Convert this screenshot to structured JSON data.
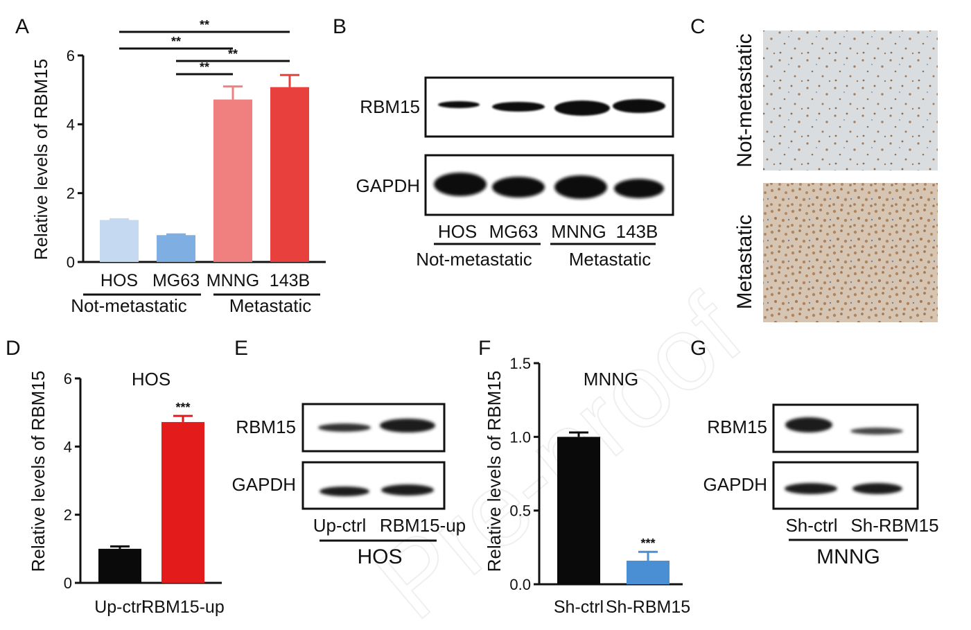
{
  "panels": {
    "A": "A",
    "B": "B",
    "C": "C",
    "D": "D",
    "E": "E",
    "F": "F",
    "G": "G"
  },
  "watermark": "Pre-proof",
  "chart_data": [
    {
      "id": "A",
      "type": "bar",
      "title": "",
      "ylabel": "Relative  levels of RBM15",
      "ylim": [
        0,
        6
      ],
      "yticks": [
        "0",
        "2",
        "4",
        "6"
      ],
      "categories": [
        "HOS",
        "MG63",
        "MNNG",
        "143B"
      ],
      "values": [
        1.22,
        0.78,
        4.72,
        5.08
      ],
      "errors": [
        0.02,
        0.02,
        0.38,
        0.35
      ],
      "colors": [
        "#c5daf1",
        "#7eaee2",
        "#f08080",
        "#e8403d"
      ],
      "groups": [
        "Not-metastatic",
        "Metastatic"
      ],
      "significance": [
        {
          "from": 0,
          "to": 3,
          "label": "**"
        },
        {
          "from": 0,
          "to": 2,
          "label": "**"
        },
        {
          "from": 1,
          "to": 3,
          "label": "**"
        },
        {
          "from": 1,
          "to": 2,
          "label": "**"
        }
      ]
    },
    {
      "id": "D",
      "type": "bar",
      "title": "HOS",
      "ylabel": "Relative  levels of RBM15",
      "ylim": [
        0,
        6
      ],
      "yticks": [
        "0",
        "2",
        "4",
        "6"
      ],
      "categories": [
        "Up-ctrl",
        "RBM15-up"
      ],
      "values": [
        1.0,
        4.72
      ],
      "errors": [
        0.07,
        0.18
      ],
      "colors": [
        "#0a0a0a",
        "#e41b1b"
      ],
      "annotations": [
        "",
        "***"
      ]
    },
    {
      "id": "F",
      "type": "bar",
      "title": "MNNG",
      "ylabel": "Relative  levels of RBM15",
      "ylim": [
        0,
        1.5
      ],
      "yticks": [
        "0.0",
        "0.5",
        "1.0",
        "1.5"
      ],
      "categories": [
        "Sh-ctrl",
        "Sh-RBM15"
      ],
      "values": [
        1.0,
        0.16
      ],
      "errors": [
        0.03,
        0.06
      ],
      "colors": [
        "#0a0a0a",
        "#4a8fd4"
      ],
      "annotations": [
        "",
        "***"
      ]
    }
  ],
  "western_blots": [
    {
      "id": "B",
      "rows": [
        "RBM15",
        "GAPDH"
      ],
      "lanes": [
        "HOS",
        "MG63",
        "MNNG",
        "143B"
      ],
      "groups": [
        "Not-metastatic",
        "Metastatic"
      ]
    },
    {
      "id": "E",
      "rows": [
        "RBM15",
        "GAPDH"
      ],
      "lanes": [
        "Up-ctrl",
        "RBM15-up"
      ],
      "group": "HOS"
    },
    {
      "id": "G",
      "rows": [
        "RBM15",
        "GAPDH"
      ],
      "lanes": [
        "Sh-ctrl",
        "Sh-RBM15"
      ],
      "group": "MNNG"
    }
  ],
  "histology": {
    "labels": [
      "Not-metastatic",
      "Metastatic"
    ]
  }
}
